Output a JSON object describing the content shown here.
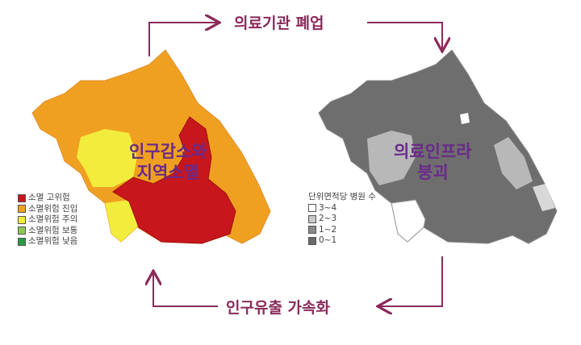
{
  "cycle": {
    "top": "의료기관 폐업",
    "bottom": "인구유출 가속화",
    "arrow_color": "#8a2a5a"
  },
  "left_map": {
    "label_line1": "인구감소와",
    "label_line2": "지역소멸",
    "label_color": "#6a2a8a",
    "legend": [
      {
        "label": "소멸 고위험",
        "color": "#c8161d"
      },
      {
        "label": "소멸위험 진입",
        "color": "#f0a020"
      },
      {
        "label": "소멸위험 주의",
        "color": "#f2ec3c"
      },
      {
        "label": "소멸위험 보통",
        "color": "#8cc850"
      },
      {
        "label": "소멸위험 낮음",
        "color": "#2a9a40"
      }
    ]
  },
  "right_map": {
    "label_line1": "의료인프라",
    "label_line2": "붕괴",
    "label_color": "#6a2a8a",
    "legend_title": "단위면적당 병원 수",
    "legend": [
      {
        "label": "3~4",
        "color": "#ffffff"
      },
      {
        "label": "2~3",
        "color": "#c8c8c8"
      },
      {
        "label": "1~2",
        "color": "#8a8a8a"
      },
      {
        "label": "0~1",
        "color": "#6a6a6a"
      }
    ]
  }
}
